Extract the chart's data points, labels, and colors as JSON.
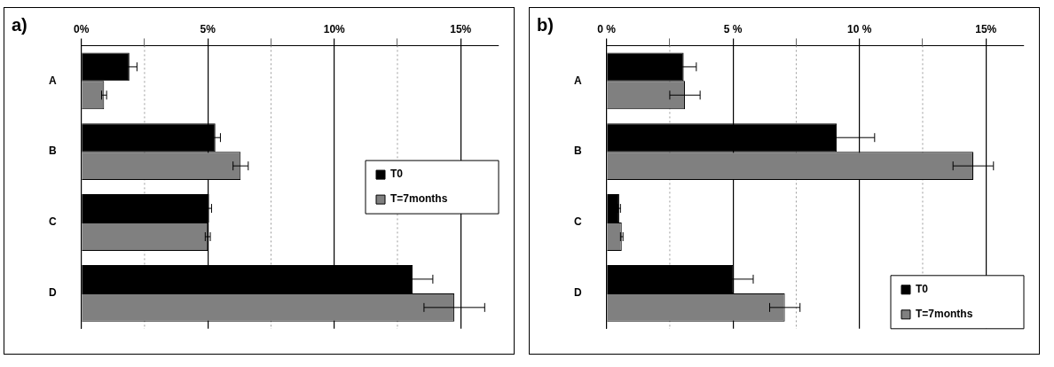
{
  "chart_data": [
    {
      "type": "bar",
      "orientation": "horizontal",
      "title": "a)",
      "categories": [
        "A",
        "B",
        "C",
        "D"
      ],
      "series": [
        {
          "name": "T0",
          "color": "#000000",
          "values": [
            1.9,
            5.3,
            5.05,
            13.1
          ],
          "errors": [
            0.3,
            0.2,
            0.1,
            0.8
          ]
        },
        {
          "name": "T=7months",
          "color": "#808080",
          "values": [
            0.9,
            6.3,
            5.0,
            14.75
          ],
          "errors": [
            0.1,
            0.3,
            0.1,
            1.2
          ]
        }
      ],
      "xlim": [
        0,
        16.5
      ],
      "xticks": [
        {
          "value": 0,
          "label": "0%"
        },
        {
          "value": 2.5,
          "label": null
        },
        {
          "value": 5,
          "label": "5%"
        },
        {
          "value": 7.5,
          "label": null
        },
        {
          "value": 10,
          "label": "10%"
        },
        {
          "value": 12.5,
          "label": null
        },
        {
          "value": 15,
          "label": "15%"
        }
      ],
      "grid": "x",
      "legend": "center right"
    },
    {
      "type": "bar",
      "orientation": "horizontal",
      "title": "b)",
      "categories": [
        "A",
        "B",
        "C",
        "D"
      ],
      "series": [
        {
          "name": "T0",
          "color": "#000000",
          "values": [
            3.05,
            9.1,
            0.5,
            5.0
          ],
          "errors": [
            0.5,
            1.5,
            0.05,
            0.8
          ]
        },
        {
          "name": "T=7months",
          "color": "#808080",
          "values": [
            3.1,
            14.5,
            0.6,
            7.05
          ],
          "errors": [
            0.6,
            0.8,
            0.05,
            0.6
          ]
        }
      ],
      "xlim": [
        0,
        16.5
      ],
      "xticks": [
        {
          "value": 0,
          "label": "0 %"
        },
        {
          "value": 2.5,
          "label": null
        },
        {
          "value": 5,
          "label": "5 %"
        },
        {
          "value": 7.5,
          "label": null
        },
        {
          "value": 10,
          "label": "10 %"
        },
        {
          "value": 12.5,
          "label": null
        },
        {
          "value": 15,
          "label": "15%"
        }
      ],
      "grid": "x",
      "legend": "bottom right"
    }
  ]
}
